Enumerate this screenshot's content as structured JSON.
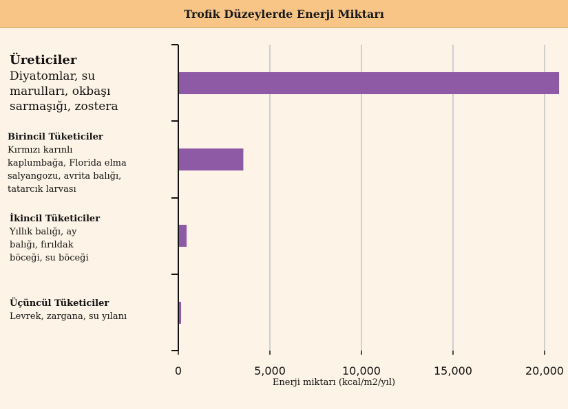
{
  "header": {
    "title": "Trofik Düzeylerde Enerji Miktarı"
  },
  "colors": {
    "bar": "#8e5aa6",
    "header_bg": "#f9c587",
    "page_bg": "#fdf3e6",
    "grid": "#cfcfcf"
  },
  "chart_data": {
    "type": "bar",
    "orientation": "horizontal",
    "title": "Trofik Düzeylerde Enerji Miktarı",
    "xlabel": "Enerji miktarı (kcal/m2/yıl)",
    "xlim": [
      0,
      21000
    ],
    "xticks": [
      0,
      5000,
      10000,
      15000,
      20000
    ],
    "xtick_labels": [
      "0",
      "5,000",
      "10,000",
      "15,000",
      "20,000"
    ],
    "grid": true,
    "categories": [
      {
        "name": "Üreticiler",
        "desc": "Diyatomlar, su marulları, okbaşı sarmaşığı, zostera"
      },
      {
        "name": "Birincil Tüketiciler",
        "desc": "Kırmızı karınlı kaplumbağa, Florida elma salyangozu, avrita balığı, tatarcık larvası"
      },
      {
        "name": "İkincil Tüketiciler",
        "desc": "Yıllık balığı, ay balığı, fırıldak böceği, su böceği"
      },
      {
        "name": "Üçüncül Tüketiciler",
        "desc": "Levrek, zargana, su yılanı"
      }
    ],
    "values": [
      21000,
      3550,
      450,
      150
    ]
  }
}
